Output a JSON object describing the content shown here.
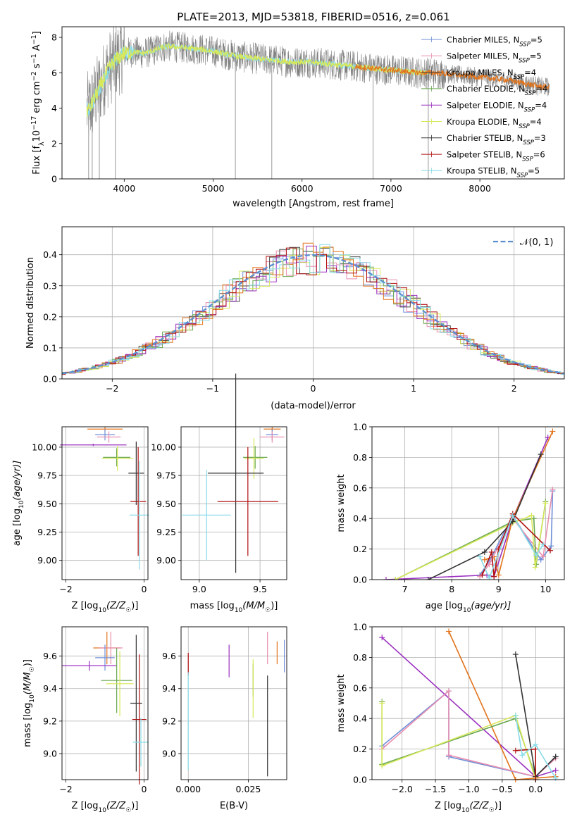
{
  "figure_title": "PLATE=2013, MJD=53818, FIBERID=0516, z=0.061",
  "colors": {
    "Chabrier MILES": "#6f8fd8",
    "Salpeter MILES": "#e98fb0",
    "Kroupa MILES": "#4a4a4a",
    "Chabrier ELODIE": "#6aa84f",
    "Salpeter ELODIE": "#9b30c0",
    "Kroupa ELODIE": "#d8e85a",
    "Chabrier STELIB": "#333333",
    "Salpeter STELIB": "#b01010",
    "Kroupa STELIB": "#88dbe8",
    "orange": "#e2741c",
    "data_gray": "#808080",
    "normal_dash": "#5b8fd0"
  },
  "chart_data": [
    {
      "id": "spectrum",
      "type": "line",
      "title": "PLATE=2013, MJD=53818, FIBERID=0516, z=0.061",
      "xlabel": "wavelength [Angstrom, rest frame]",
      "ylabel": "Flux [f_λ 10^-17 erg cm^-2 s^-1 A^-1]",
      "xlim": [
        3300,
        8950
      ],
      "ylim": [
        0,
        8.6
      ],
      "xticks": [
        4000,
        5000,
        6000,
        7000,
        8000
      ],
      "yticks": [
        0,
        2,
        4,
        6,
        8
      ],
      "legend": [
        {
          "name": "Chabrier MILES",
          "nssp": "5"
        },
        {
          "name": "Salpeter MILES",
          "nssp": "5"
        },
        {
          "name": "Kroupa MILES",
          "nssp": "4"
        },
        {
          "name": "Chabrier ELODIE",
          "nssp": "4"
        },
        {
          "name": "Salpeter ELODIE",
          "nssp": "4"
        },
        {
          "name": "Kroupa ELODIE",
          "nssp": "4"
        },
        {
          "name": "Chabrier STELIB",
          "nssp": "3"
        },
        {
          "name": "Salpeter STELIB",
          "nssp": "6"
        },
        {
          "name": "Kroupa STELIB",
          "nssp": "5"
        }
      ],
      "model_x": [
        3600,
        3700,
        3800,
        3900,
        4000,
        4100,
        4200,
        4300,
        4400,
        4500,
        4700,
        4900,
        5100,
        5300,
        5500,
        5700,
        5900,
        6100,
        6300,
        6500,
        6700,
        6900,
        7100,
        7300,
        7500,
        7700,
        7900,
        8100,
        8300,
        8500,
        8700
      ],
      "model_y": [
        3.9,
        4.9,
        6.0,
        6.7,
        7.1,
        7.2,
        7.1,
        7.2,
        7.4,
        7.5,
        7.4,
        7.3,
        7.1,
        6.9,
        6.8,
        6.7,
        6.6,
        6.6,
        6.5,
        6.4,
        6.3,
        6.2,
        6.1,
        6.0,
        6.0,
        5.9,
        5.8,
        5.7,
        5.6,
        5.4,
        5.2
      ]
    },
    {
      "id": "residuals",
      "type": "histogram",
      "xlabel": "(data-model)/error",
      "ylabel": "Normed distribution",
      "xlim": [
        -2.5,
        2.5
      ],
      "ylim": [
        0,
        0.49
      ],
      "xticks": [
        -2,
        -1,
        0,
        1,
        2
      ],
      "yticks": [
        0.0,
        0.1,
        0.2,
        0.3,
        0.4
      ],
      "legend_label": "𝒩(0, 1)",
      "grid": true
    },
    {
      "id": "age_vs_Z",
      "type": "scatter",
      "xlabel": "Z [log10(Z/Z☉)]",
      "ylabel": "age [log10(age/yr)]",
      "xlim": [
        -2.1,
        0.1
      ],
      "ylim": [
        8.83,
        10.18
      ],
      "xticks": [
        -2,
        0
      ],
      "yticks": [
        9.0,
        9.25,
        9.5,
        9.75,
        10.0
      ],
      "grid": true
    },
    {
      "id": "age_vs_mass",
      "type": "scatter",
      "xlabel": "mass [log10(M/M☉)]",
      "ylabel": "",
      "xlim": [
        8.85,
        9.72
      ],
      "ylim": [
        8.83,
        10.18
      ],
      "xticks": [
        9.0,
        9.5
      ],
      "yticks": [
        9.0,
        9.25,
        9.5,
        9.75,
        10.0
      ],
      "grid": true
    },
    {
      "id": "weight_vs_age",
      "type": "line",
      "xlabel": "age [log10(age/yr)]",
      "ylabel": "mass weight",
      "xlim": [
        6.3,
        10.4
      ],
      "ylim": [
        0,
        1.0
      ],
      "xticks": [
        7,
        8,
        9,
        10
      ],
      "yticks": [
        0.0,
        0.2,
        0.4,
        0.6,
        0.8,
        1.0
      ],
      "grid": true
    },
    {
      "id": "mass_vs_Z",
      "type": "scatter",
      "xlabel": "Z [log10(Z/Z☉)]",
      "ylabel": "mass [log10(M/M☉)]",
      "xlim": [
        -2.1,
        0.1
      ],
      "ylim": [
        8.84,
        9.78
      ],
      "xticks": [
        -2,
        0
      ],
      "yticks": [
        9.0,
        9.2,
        9.4,
        9.6
      ],
      "grid": true
    },
    {
      "id": "mass_vs_EBV",
      "type": "scatter",
      "xlabel": "E(B-V)",
      "ylabel": "",
      "xlim": [
        -0.003,
        0.041
      ],
      "ylim": [
        8.84,
        9.78
      ],
      "xticks": [
        0.0,
        0.025
      ],
      "xtick_labels": [
        "0.000",
        "0.025"
      ],
      "yticks": [
        9.0,
        9.2,
        9.4,
        9.6
      ],
      "grid": true
    },
    {
      "id": "weight_vs_Z",
      "type": "line",
      "xlabel": "Z [log10(Z/Z☉)]",
      "ylabel": "mass weight",
      "xlim": [
        -2.45,
        0.43
      ],
      "ylim": [
        0,
        1.0
      ],
      "xticks": [
        -2.0,
        -1.5,
        -1.0,
        -0.5,
        0.0
      ],
      "yticks": [
        0.0,
        0.2,
        0.4,
        0.6,
        0.8,
        1.0
      ],
      "grid": true
    }
  ]
}
